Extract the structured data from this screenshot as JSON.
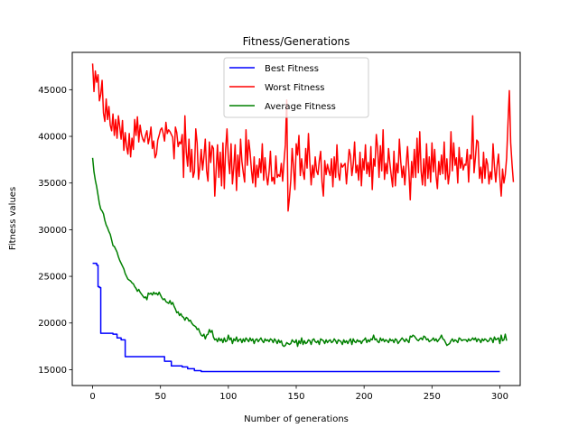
{
  "chart_data": {
    "type": "line",
    "title": "Fitness/Generations",
    "xlabel": "Number of generations",
    "ylabel": "Fitness values",
    "xlim": [
      -15,
      315
    ],
    "ylim": [
      13300,
      49000
    ],
    "x_ticks": [
      0,
      50,
      100,
      150,
      200,
      250,
      300
    ],
    "y_ticks": [
      15000,
      20000,
      25000,
      30000,
      35000,
      40000,
      45000
    ],
    "grid": false,
    "legend_position": "top-center",
    "series": [
      {
        "name": "Best Fitness",
        "color": "#0000ff",
        "steps": [
          [
            0,
            26400
          ],
          [
            3,
            26200
          ],
          [
            4,
            23900
          ],
          [
            5,
            23800
          ],
          [
            6,
            18900
          ],
          [
            15,
            18800
          ],
          [
            18,
            18400
          ],
          [
            21,
            18200
          ],
          [
            24,
            16400
          ],
          [
            52,
            16400
          ],
          [
            53,
            15900
          ],
          [
            58,
            15400
          ],
          [
            66,
            15300
          ],
          [
            70,
            15100
          ],
          [
            75,
            14900
          ],
          [
            80,
            14800
          ],
          [
            300,
            14800
          ]
        ]
      },
      {
        "name": "Worst Fitness",
        "color": "#ff0000",
        "values": [
          47800,
          44800,
          47000,
          45800,
          46600,
          43800,
          44500,
          46000,
          42500,
          41600,
          44000,
          41800,
          43200,
          41200,
          40600,
          42400,
          40100,
          41800,
          39800,
          42200,
          41000,
          39700,
          41700,
          38500,
          40400,
          38900,
          38100,
          40300,
          37800,
          39800,
          38600,
          41800,
          40100,
          42100,
          39400,
          41200,
          40200,
          39700,
          39400,
          40100,
          40600,
          39200,
          39900,
          41000,
          38700,
          39500,
          37700,
          38100,
          39600,
          40100,
          40700,
          40900,
          40300,
          39500,
          41500,
          40300,
          40700,
          40500,
          40200,
          39900,
          37600,
          41000,
          40400,
          38900,
          39400,
          39200,
          40200,
          35600,
          42200,
          38300,
          36800,
          39700,
          36200,
          38600,
          35600,
          36200,
          40800,
          39300,
          35400,
          36700,
          38600,
          36400,
          37800,
          39700,
          36300,
          35200,
          39400,
          37200,
          39000,
          38700,
          33600,
          36400,
          39100,
          35600,
          38300,
          34700,
          39300,
          34400,
          38600,
          40800,
          37600,
          36000,
          39200,
          34900,
          36700,
          39100,
          34200,
          38000,
          35700,
          39700,
          37300,
          36100,
          35100,
          40700,
          36900,
          39600,
          38300,
          36400,
          35000,
          37800,
          34600,
          36900,
          35600,
          37600,
          36100,
          39200,
          35300,
          37700,
          35800,
          34800,
          36200,
          38400,
          35200,
          35600,
          34900,
          37900,
          35600,
          35900,
          35700,
          37100,
          35200,
          37300,
          39100,
          43900,
          32000,
          33400,
          35300,
          38700,
          36700,
          34300,
          39200,
          38000,
          40100,
          35800,
          37600,
          36200,
          35400,
          38700,
          36600,
          40300,
          37300,
          34800,
          36900,
          35600,
          37800,
          36300,
          35900,
          37400,
          38400,
          35100,
          33600,
          37400,
          35900,
          37000,
          36300,
          35800,
          37600,
          34600,
          37800,
          35600,
          39100,
          36100,
          35300,
          37100,
          36700,
          36900,
          37100,
          34900,
          36800,
          38600,
          37900,
          35800,
          37000,
          39400,
          36100,
          36900,
          35300,
          38300,
          34700,
          37600,
          36400,
          39100,
          36000,
          37200,
          35700,
          38900,
          34300,
          37600,
          36800,
          40200,
          38700,
          35600,
          39000,
          36300,
          40700,
          35400,
          37100,
          36000,
          38700,
          37100,
          35800,
          34600,
          38400,
          34700,
          37100,
          36100,
          39700,
          37300,
          35600,
          36800,
          34800,
          37000,
          38900,
          36300,
          33200,
          37300,
          35600,
          38600,
          35600,
          39800,
          36100,
          40500,
          36300,
          34800,
          37600,
          34700,
          39200,
          35500,
          37800,
          35100,
          39300,
          36200,
          38600,
          35800,
          34400,
          37300,
          35900,
          38000,
          36000,
          39400,
          35400,
          37600,
          34900,
          36100,
          40500,
          36300,
          39300,
          36900,
          37700,
          35000,
          38800,
          36600,
          37700,
          36400,
          37000,
          36900,
          38600,
          35100,
          38000,
          37600,
          42200,
          36100,
          37700,
          39600,
          39400,
          35500,
          36700,
          35000,
          38300,
          35500,
          37600,
          37000,
          34900,
          36200,
          35400,
          39200,
          36800,
          35100,
          36900,
          38100,
          35600,
          33600,
          36500,
          35000,
          35900,
          37700,
          41400,
          44900,
          39300,
          37000,
          35100
        ]
      },
      {
        "name": "Average Fitness",
        "color": "#008000",
        "values": [
          37700,
          36200,
          35300,
          34600,
          33700,
          32800,
          32200,
          32000,
          31700,
          31000,
          30500,
          30200,
          29800,
          29500,
          28900,
          28300,
          28200,
          27900,
          27600,
          27100,
          26700,
          26400,
          26100,
          25800,
          25300,
          25000,
          24700,
          24600,
          24500,
          24300,
          24200,
          23900,
          23700,
          23400,
          23600,
          23300,
          23100,
          22900,
          22700,
          22800,
          22500,
          23200,
          23100,
          23200,
          23000,
          23300,
          23100,
          23200,
          23000,
          23300,
          23000,
          22700,
          22500,
          22600,
          22300,
          22200,
          22100,
          22400,
          22000,
          22200,
          21800,
          21500,
          21100,
          21200,
          20800,
          21000,
          20700,
          20600,
          20300,
          20600,
          20500,
          20200,
          20300,
          20000,
          19800,
          19700,
          19600,
          19300,
          19400,
          19000,
          18700,
          18600,
          18800,
          18300,
          18700,
          18800,
          19300,
          19000,
          19200,
          18500,
          18200,
          18300,
          18000,
          18400,
          18100,
          18300,
          17900,
          18400,
          18000,
          18100,
          18700,
          18200,
          18400,
          17800,
          18300,
          18100,
          18500,
          18000,
          18200,
          18300,
          17900,
          18300,
          18000,
          18400,
          18200,
          18000,
          18400,
          18100,
          18300,
          17800,
          18200,
          18300,
          18000,
          18200,
          18400,
          18100,
          17900,
          18300,
          18100,
          18200,
          18000,
          18300,
          18200,
          17900,
          18300,
          18100,
          17800,
          18200,
          17900,
          18100,
          17600,
          17500,
          17600,
          17900,
          17800,
          17700,
          17800,
          18200,
          18000,
          17900,
          18200,
          17500,
          18100,
          17800,
          18400,
          17700,
          18100,
          17800,
          17900,
          18200,
          18100,
          17700,
          18200,
          18300,
          18000,
          17900,
          18100,
          17700,
          18300,
          18200,
          18100,
          17800,
          18200,
          17900,
          18100,
          18200,
          17900,
          18000,
          18300,
          18100,
          17800,
          18200,
          18100,
          18000,
          17700,
          18200,
          17900,
          18100,
          17800,
          18100,
          18300,
          17700,
          18300,
          18000,
          17900,
          18200,
          18000,
          18100,
          17800,
          18100,
          18200,
          18400,
          17900,
          18200,
          18000,
          18300,
          18200,
          18700,
          18200,
          18300,
          18000,
          17900,
          18400,
          18100,
          18300,
          18000,
          18200,
          18100,
          17900,
          18300,
          18100,
          18200,
          17900,
          18300,
          18200,
          17800,
          18000,
          18200,
          18400,
          18200,
          18000,
          18300,
          18100,
          17900,
          18600,
          18500,
          18700,
          18600,
          18400,
          18200,
          18100,
          18300,
          18400,
          18200,
          18600,
          18500,
          18200,
          18300,
          18000,
          18100,
          18200,
          18400,
          18100,
          18300,
          18000,
          18200,
          18400,
          18700,
          18300,
          18200,
          17900,
          17600,
          17700,
          17800,
          18100,
          18300,
          18000,
          18200,
          18100,
          17900,
          18400,
          18300,
          18100,
          18200,
          18200,
          18200,
          18000,
          18300,
          18100,
          18200,
          18400,
          18200,
          18400,
          18000,
          18300,
          18200,
          17900,
          18300,
          18100,
          18300,
          18200,
          18000,
          18100,
          18400,
          18300,
          17900,
          18500,
          18200,
          18300,
          18400,
          17800,
          18700,
          18100,
          18200,
          18800,
          18100
        ]
      }
    ]
  }
}
